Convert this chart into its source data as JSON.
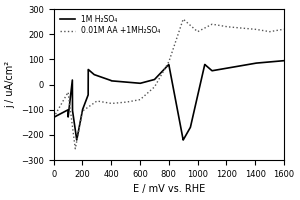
{
  "title": "",
  "xlabel": "E / mV vs. RHE",
  "ylabel": "j / uA/cm²",
  "xlim": [
    0,
    1600
  ],
  "ylim": [
    -300,
    300
  ],
  "xticks": [
    0,
    200,
    400,
    600,
    800,
    1000,
    1200,
    1400,
    1600
  ],
  "yticks": [
    -300,
    -200,
    -100,
    0,
    100,
    200,
    300
  ],
  "legend": [
    "1M H₂SO₄",
    "0.01M AA +1MH₂SO₄"
  ],
  "line1_color": "#000000",
  "line2_color": "#555555",
  "background": "#ffffff",
  "figsize": [
    3.0,
    2.0
  ],
  "dpi": 100
}
